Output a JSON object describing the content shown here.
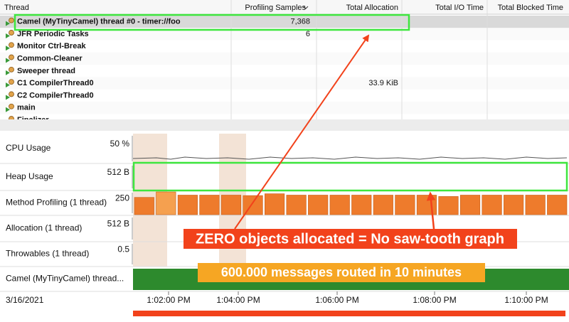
{
  "table": {
    "columns": [
      "Thread",
      "Profiling Samples",
      "Total Allocation",
      "Total I/O Time",
      "Total Blocked Time"
    ],
    "rows": [
      {
        "thread": "Camel (MyTinyCamel) thread #0 - timer://foo",
        "profiling_samples": "7,368"
      },
      {
        "thread": "JFR Periodic Tasks",
        "profiling_samples": "6"
      },
      {
        "thread": "Monitor Ctrl-Break"
      },
      {
        "thread": "Common-Cleaner"
      },
      {
        "thread": "Sweeper thread"
      },
      {
        "thread": "C1 CompilerThread0",
        "total_allocation": "33.9 KiB"
      },
      {
        "thread": "C2 CompilerThread0"
      },
      {
        "thread": "main"
      },
      {
        "thread": "Finalizer"
      }
    ]
  },
  "timeline": {
    "rows": [
      {
        "label": "CPU Usage",
        "scale": "50 %"
      },
      {
        "label": "Heap Usage",
        "scale": "512 B"
      },
      {
        "label": "Method Profiling (1 thread)",
        "scale": "250"
      },
      {
        "label": "Allocation (1 thread)",
        "scale": "512 B"
      },
      {
        "label": "Throwables (1 thread)",
        "scale": "0.5"
      },
      {
        "label": "Camel (MyTinyCamel) thread..."
      }
    ],
    "date": "3/16/2021",
    "time_ticks": [
      "1:02:00 PM",
      "1:04:00 PM",
      "1:06:00 PM",
      "1:08:00 PM",
      "1:10:00 PM"
    ],
    "method_profiling_samples": [
      190,
      250,
      215,
      215,
      215,
      210,
      230,
      215,
      215,
      215,
      215,
      215,
      215,
      215,
      200,
      215,
      215,
      215,
      215,
      215
    ]
  },
  "annotations": [
    "ZERO objects allocated = No saw-tooth graph",
    "600.000 messages routed in 10 minutes"
  ]
}
